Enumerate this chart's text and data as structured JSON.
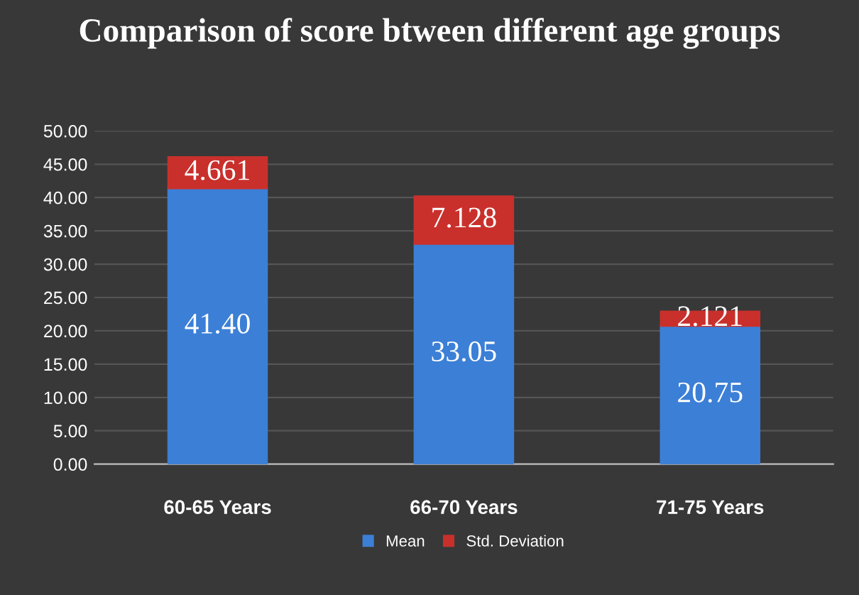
{
  "chart_data": {
    "type": "bar",
    "title": "Comparison of score btween different age groups",
    "stacked": true,
    "categories": [
      "60-65 Years",
      "66-70 Years",
      "71-75 Years"
    ],
    "series": [
      {
        "name": "Mean",
        "color": "#3c7fd6",
        "values": [
          41.4,
          33.05,
          20.75
        ],
        "value_labels": [
          "41.40",
          "33.05",
          "20.75"
        ]
      },
      {
        "name": "Std. Deviation",
        "color": "#c9302c",
        "values": [
          4.661,
          7.128,
          2.121
        ],
        "value_labels": [
          "4.661",
          "7.128",
          "2.121"
        ]
      }
    ],
    "ylim": [
      0,
      50
    ],
    "yticks": [
      {
        "value": 0,
        "label": "0.00"
      },
      {
        "value": 5,
        "label": "5.00"
      },
      {
        "value": 10,
        "label": "10.00"
      },
      {
        "value": 15,
        "label": "15.00"
      },
      {
        "value": 20,
        "label": "20.00"
      },
      {
        "value": 25,
        "label": "25.00"
      },
      {
        "value": 30,
        "label": "30.00"
      },
      {
        "value": 35,
        "label": "35.00"
      },
      {
        "value": 40,
        "label": "40.00"
      },
      {
        "value": 45,
        "label": "45.00"
      },
      {
        "value": 50,
        "label": "50.00"
      }
    ],
    "grid": "y",
    "legend": "bottom"
  }
}
